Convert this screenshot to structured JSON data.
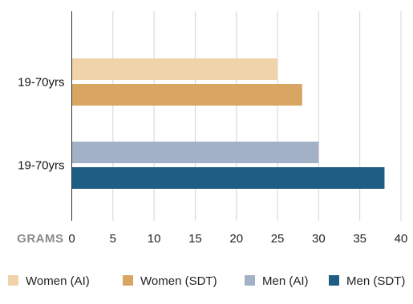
{
  "chart_data": {
    "type": "bar",
    "orientation": "horizontal",
    "title": "",
    "xlabel": "GRAMS",
    "ylabel": "",
    "xlim": [
      0,
      40
    ],
    "x_ticks": [
      0,
      5,
      10,
      15,
      20,
      25,
      30,
      35,
      40
    ],
    "grid": "vertical",
    "legend_position": "bottom",
    "groups": [
      {
        "label": "19-70yrs",
        "bars": [
          {
            "series": "Women (AI)",
            "value": 25
          },
          {
            "series": "Women (SDT)",
            "value": 28
          }
        ]
      },
      {
        "label": "19-70yrs",
        "bars": [
          {
            "series": "Men (AI)",
            "value": 30
          },
          {
            "series": "Men (SDT)",
            "value": 38
          }
        ]
      }
    ],
    "series": [
      {
        "name": "Women (AI)",
        "color": "#F0D3A8"
      },
      {
        "name": "Women (SDT)",
        "color": "#D8A662"
      },
      {
        "name": "Men (AI)",
        "color": "#A3B1C6"
      },
      {
        "name": "Men (SDT)",
        "color": "#1E5E84"
      }
    ]
  }
}
